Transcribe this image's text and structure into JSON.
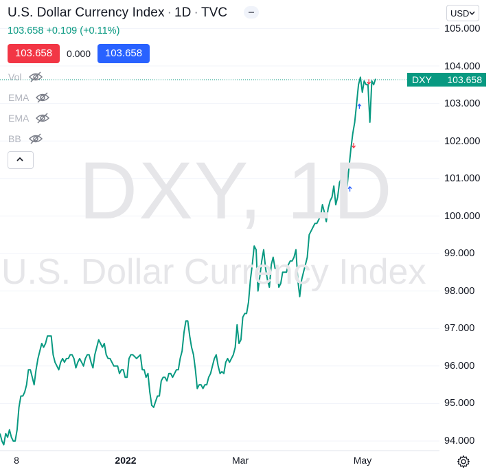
{
  "header": {
    "title": "U.S. Dollar Currency Index",
    "interval": "1D",
    "exchange": "TVC",
    "last_value": "103.658",
    "change": "+0.109 (+0.11%)",
    "bid": "103.658",
    "spread": "0.000",
    "ask": "103.658"
  },
  "indicators": [
    "Vol",
    "EMA",
    "EMA",
    "BB"
  ],
  "currency": "USD",
  "watermark": {
    "symbol": "DXY, 1D",
    "name": "U.S. Dollar Currency Index"
  },
  "price_tag": {
    "symbol": "DXY",
    "value": "103.658"
  },
  "colors": {
    "line": "#089981",
    "bid": "#f23645",
    "ask": "#2962ff",
    "arrow_up": "#2962ff",
    "arrow_down": "#f23645"
  },
  "chart_data": {
    "type": "line",
    "series": [
      {
        "y": [
          94.2,
          94.0,
          93.9,
          94.2,
          94.1,
          94.3,
          94.1,
          94.0,
          94.0,
          94.3,
          94.9,
          95.2,
          95.2,
          95.3,
          95.5,
          95.9,
          95.9,
          95.7,
          95.5,
          95.9,
          96.2,
          96.4,
          96.6,
          96.5,
          96.6,
          96.8,
          96.8,
          96.8,
          96.3,
          96.1,
          96.0,
          95.9,
          96.1,
          96.2,
          96.1,
          96.2,
          96.2,
          96.3,
          96.3,
          96.2,
          95.95,
          96.1,
          96.2,
          96.1,
          96.0,
          96.2,
          96.3,
          96.3,
          96.1,
          95.95,
          96.3,
          96.5,
          96.7,
          96.6,
          96.5,
          96.6,
          96.3,
          96.2,
          96.2,
          96.1,
          96.0,
          96.0,
          96.0,
          95.8,
          95.9,
          95.9,
          95.7,
          95.7,
          96.2,
          96.3,
          96.3,
          96.25,
          96.2,
          96.25,
          96.3,
          95.9,
          95.9,
          95.7,
          95.8,
          95.3,
          94.95,
          94.9,
          95.05,
          95.2,
          95.2,
          95.6,
          95.7,
          95.7,
          95.6,
          95.8,
          95.8,
          95.7,
          95.8,
          95.9,
          95.9,
          96.2,
          96.4,
          96.9,
          97.2,
          97.2,
          96.8,
          96.5,
          96.3,
          95.9,
          95.4,
          95.5,
          95.5,
          95.4,
          95.5,
          95.5,
          95.7,
          95.8,
          96.0,
          96.2,
          96.3,
          96.0,
          95.8,
          95.85,
          95.8,
          96.1,
          96.2,
          96.1,
          96.2,
          96.3,
          96.5,
          97.1,
          96.6,
          96.7,
          97.3,
          97.4,
          97.4,
          97.7,
          98.3,
          98.7,
          99.2,
          99.1,
          98.0,
          98.4,
          98.8,
          99.1,
          98.6,
          98.3,
          98.1,
          98.7,
          98.9,
          98.6,
          98.6,
          98.1,
          98.2,
          98.5,
          98.5,
          98.5,
          98.7,
          98.8,
          98.8,
          98.9,
          99.1,
          98.3,
          97.85,
          98.3,
          98.5,
          98.7,
          98.9,
          99.5,
          99.6,
          99.7,
          99.8,
          99.8,
          99.9,
          100.0,
          100.3,
          100.1,
          99.85,
          100.2,
          100.4,
          100.5,
          100.8,
          100.3,
          100.5,
          100.9,
          101.0,
          100.4,
          100.6,
          100.8,
          101.3,
          101.8,
          102.2,
          102.5,
          103.0,
          103.5,
          103.7,
          103.3,
          103.6,
          103.5,
          103.5,
          102.5,
          103.6,
          103.5,
          103.658
        ]
      }
    ],
    "x_ticks": [
      "8",
      "2022",
      "Mar",
      "May"
    ],
    "y_ticks": [
      "94.000",
      "95.000",
      "96.000",
      "97.000",
      "98.000",
      "99.000",
      "100.000",
      "101.000",
      "102.000",
      "103.000",
      "104.000",
      "105.000"
    ],
    "ylim": [
      93.9,
      105.2
    ],
    "markers": [
      {
        "type": "up",
        "index": 183
      },
      {
        "type": "down",
        "index": 185
      },
      {
        "type": "up",
        "index": 188
      },
      {
        "type": "down",
        "index": 193
      }
    ],
    "grid": true,
    "scale": "linear"
  }
}
